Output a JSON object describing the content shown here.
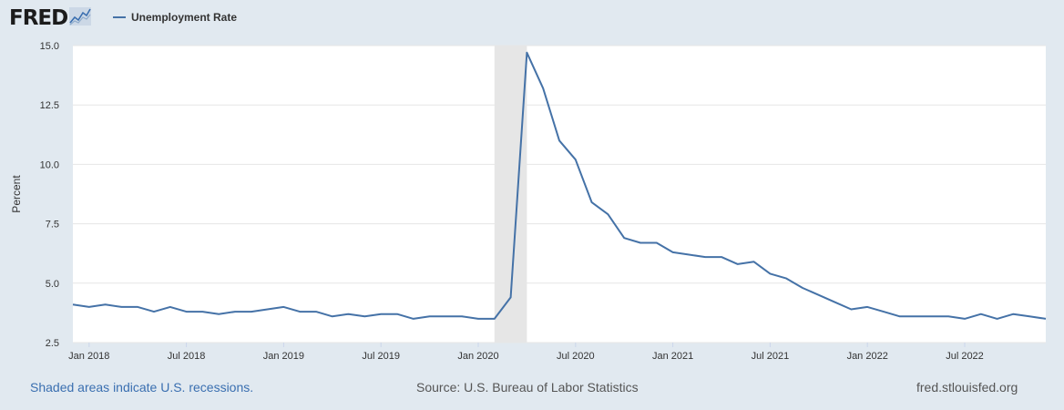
{
  "header": {
    "logo_text": "FRED",
    "logo_icon": "line-chart-icon",
    "legend_label": "Unemployment Rate"
  },
  "colors": {
    "series": "#4572a7",
    "recession_band": "#e6e6e6",
    "page_background": "#e1e9f0",
    "plot_background": "#ffffff",
    "gridline": "#e6e6e6",
    "note_link": "#3a6fb0"
  },
  "chart_data": {
    "type": "line",
    "title": "",
    "xlabel": "",
    "ylabel": "Percent",
    "ylim": [
      2.5,
      15.0
    ],
    "yticks": [
      2.5,
      5.0,
      7.5,
      10.0,
      12.5,
      15.0
    ],
    "ytick_labels": [
      "2.5",
      "5.0",
      "7.5",
      "10.0",
      "12.5",
      "15.0"
    ],
    "xlim": [
      "2017-12",
      "2022-12"
    ],
    "xticks": [
      "2018-01",
      "2018-07",
      "2019-01",
      "2019-07",
      "2020-01",
      "2020-07",
      "2021-01",
      "2021-07",
      "2022-01",
      "2022-07"
    ],
    "xtick_labels": [
      "Jan 2018",
      "Jul 2018",
      "Jan 2019",
      "Jul 2019",
      "Jan 2020",
      "Jul 2020",
      "Jan 2021",
      "Jul 2021",
      "Jan 2022",
      "Jul 2022"
    ],
    "grid": true,
    "legend_position": "top-left",
    "recession_bands": [
      {
        "start": "2020-02",
        "end": "2020-04"
      }
    ],
    "series": [
      {
        "name": "Unemployment Rate",
        "x": [
          "2017-12",
          "2018-01",
          "2018-02",
          "2018-03",
          "2018-04",
          "2018-05",
          "2018-06",
          "2018-07",
          "2018-08",
          "2018-09",
          "2018-10",
          "2018-11",
          "2018-12",
          "2019-01",
          "2019-02",
          "2019-03",
          "2019-04",
          "2019-05",
          "2019-06",
          "2019-07",
          "2019-08",
          "2019-09",
          "2019-10",
          "2019-11",
          "2019-12",
          "2020-01",
          "2020-02",
          "2020-03",
          "2020-04",
          "2020-05",
          "2020-06",
          "2020-07",
          "2020-08",
          "2020-09",
          "2020-10",
          "2020-11",
          "2020-12",
          "2021-01",
          "2021-02",
          "2021-03",
          "2021-04",
          "2021-05",
          "2021-06",
          "2021-07",
          "2021-08",
          "2021-09",
          "2021-10",
          "2021-11",
          "2021-12",
          "2022-01",
          "2022-02",
          "2022-03",
          "2022-04",
          "2022-05",
          "2022-06",
          "2022-07",
          "2022-08",
          "2022-09",
          "2022-10",
          "2022-11",
          "2022-12"
        ],
        "values": [
          4.1,
          4.0,
          4.1,
          4.0,
          4.0,
          3.8,
          4.0,
          3.8,
          3.8,
          3.7,
          3.8,
          3.8,
          3.9,
          4.0,
          3.8,
          3.8,
          3.6,
          3.7,
          3.6,
          3.7,
          3.7,
          3.5,
          3.6,
          3.6,
          3.6,
          3.5,
          3.5,
          4.4,
          14.7,
          13.2,
          11.0,
          10.2,
          8.4,
          7.9,
          6.9,
          6.7,
          6.7,
          6.3,
          6.2,
          6.1,
          6.1,
          5.8,
          5.9,
          5.4,
          5.2,
          4.8,
          4.5,
          4.2,
          3.9,
          4.0,
          3.8,
          3.6,
          3.6,
          3.6,
          3.6,
          3.5,
          3.7,
          3.5,
          3.7,
          3.6,
          3.5
        ]
      }
    ]
  },
  "footer": {
    "note": "Shaded areas indicate U.S. recessions.",
    "source": "Source: U.S. Bureau of Labor Statistics",
    "site": "fred.stlouisfed.org"
  }
}
